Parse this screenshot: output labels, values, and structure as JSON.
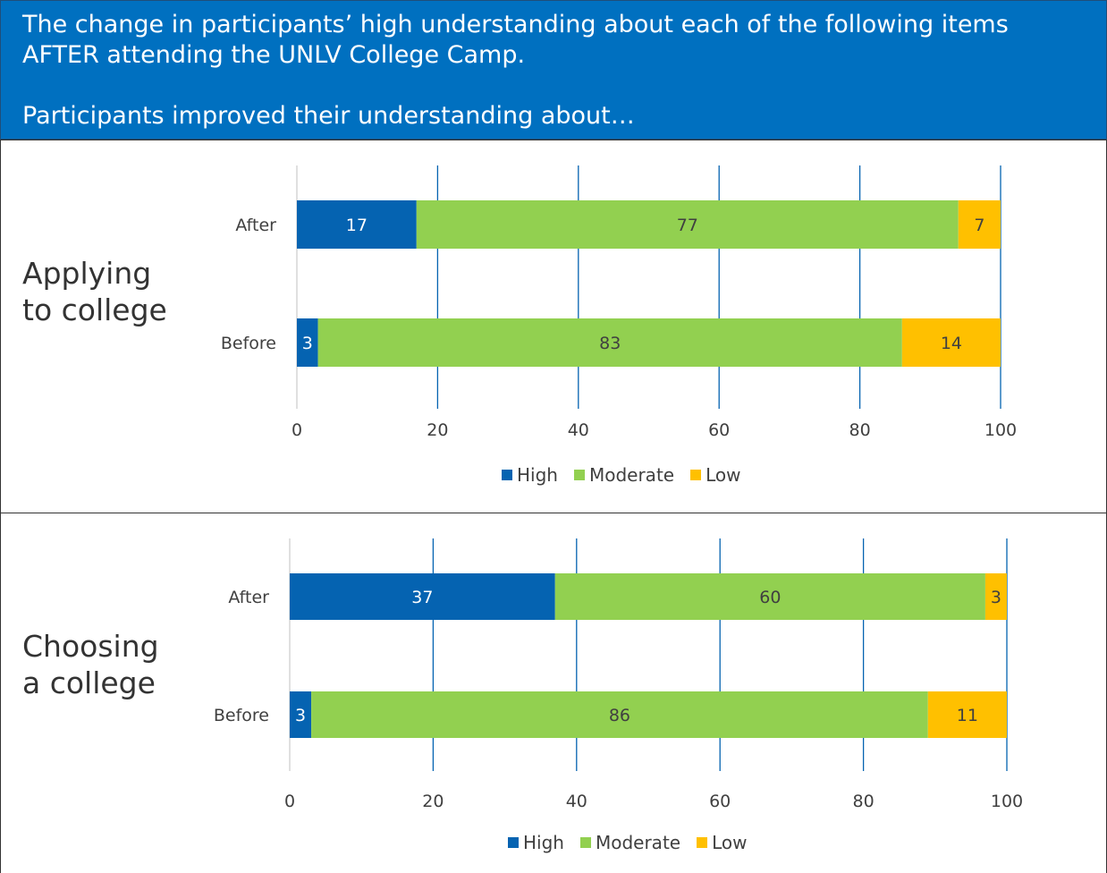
{
  "header": {
    "line1": "The change in participants’ high understanding about each of the following items",
    "line2": "AFTER attending the UNLV College Camp.",
    "line3": "Participants improved their understanding about…"
  },
  "colors": {
    "High": "#0563b1",
    "Moderate": "#92d050",
    "Low": "#ffc000",
    "grid": "#0563b1",
    "text": "#404040"
  },
  "legend": [
    "High",
    "Moderate",
    "Low"
  ],
  "chart_data": [
    {
      "type": "bar",
      "orientation": "horizontal",
      "stacked": true,
      "panel_label": "Applying\nto college",
      "categories": [
        "After",
        "Before"
      ],
      "series": [
        {
          "name": "High",
          "values": [
            17,
            3
          ]
        },
        {
          "name": "Moderate",
          "values": [
            77,
            83
          ]
        },
        {
          "name": "Low",
          "values": [
            7,
            14
          ]
        }
      ],
      "xlim": [
        0,
        100
      ],
      "xticks": [
        0,
        20,
        40,
        60,
        80,
        100
      ],
      "grid": true,
      "legend_position": "bottom"
    },
    {
      "type": "bar",
      "orientation": "horizontal",
      "stacked": true,
      "panel_label": "Choosing\na college",
      "categories": [
        "After",
        "Before"
      ],
      "series": [
        {
          "name": "High",
          "values": [
            37,
            3
          ]
        },
        {
          "name": "Moderate",
          "values": [
            60,
            86
          ]
        },
        {
          "name": "Low",
          "values": [
            3,
            11
          ]
        }
      ],
      "xlim": [
        0,
        100
      ],
      "xticks": [
        0,
        20,
        40,
        60,
        80,
        100
      ],
      "grid": true,
      "legend_position": "bottom"
    }
  ]
}
